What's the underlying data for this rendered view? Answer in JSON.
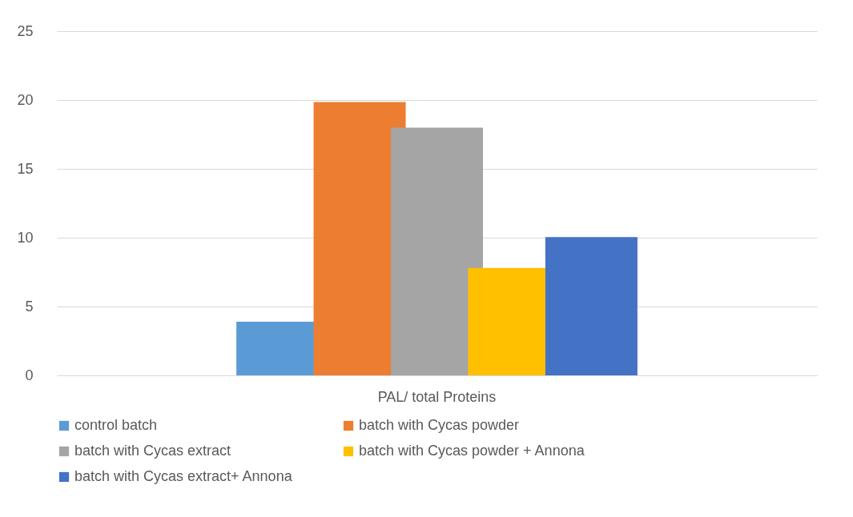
{
  "chart_data": {
    "type": "bar",
    "categories": [
      "PAL/ total Proteins"
    ],
    "series": [
      {
        "name": "control batch",
        "color": "#5b9bd5",
        "values": [
          3.9
        ]
      },
      {
        "name": "batch with  Cycas powder",
        "color": "#ed7d31",
        "values": [
          19.85
        ]
      },
      {
        "name": "batch with Cycas extract",
        "color": "#a5a5a5",
        "values": [
          18.0
        ]
      },
      {
        "name": "batch with  Cycas powder + Annona",
        "color": "#ffc000",
        "values": [
          7.8
        ]
      },
      {
        "name": "batch with Cycas extract+ Annona",
        "color": "#4472c4",
        "values": [
          10.05
        ]
      }
    ],
    "ylim": [
      0,
      25
    ],
    "yticks": [
      0,
      5,
      10,
      15,
      20,
      25
    ],
    "grid": "y",
    "legend": "bottom"
  }
}
